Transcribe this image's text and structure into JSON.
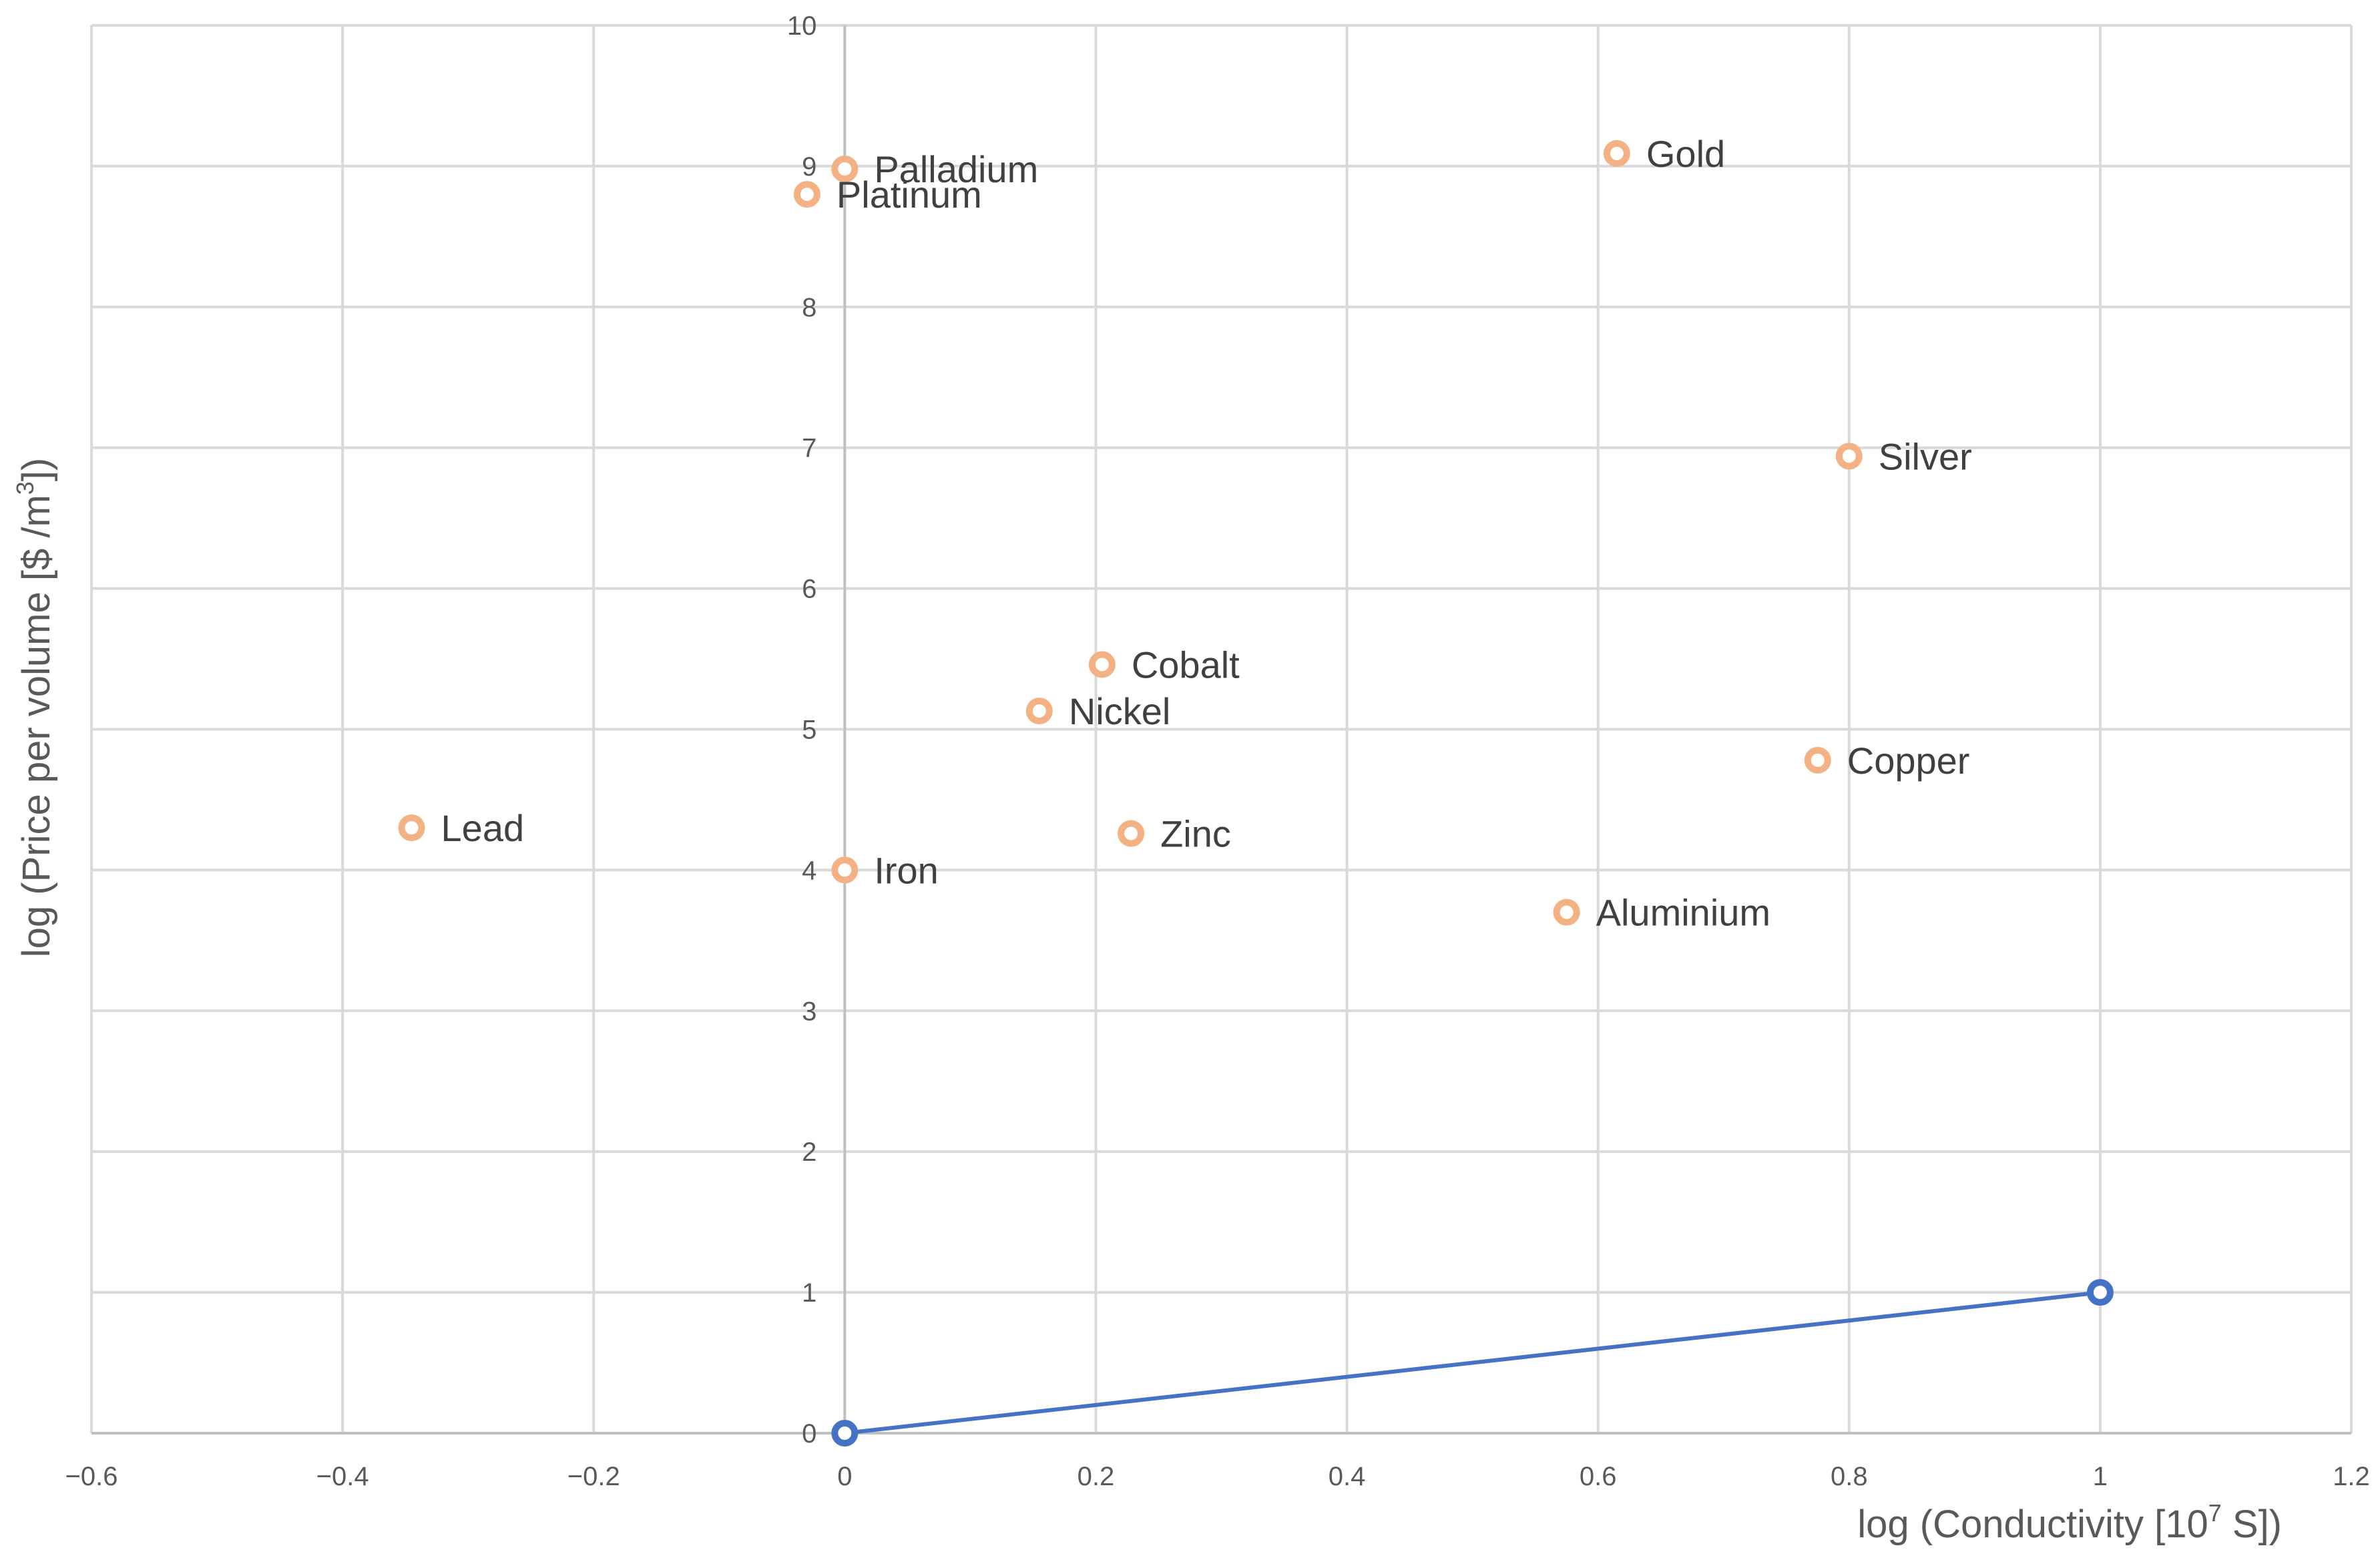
{
  "chart_data": {
    "type": "scatter",
    "title": "",
    "xlabel_main": "log (Conductivity [10",
    "xlabel_sup": "7",
    "xlabel_end": " S])",
    "ylabel_main": "log (Price per volume  [$ /m",
    "ylabel_sup": "3",
    "ylabel_end": "])",
    "xlim": [
      -0.6,
      1.2
    ],
    "ylim": [
      0,
      10
    ],
    "xticks": [
      -0.6,
      -0.4,
      -0.2,
      0,
      0.2,
      0.4,
      0.6,
      0.8,
      1,
      1.2
    ],
    "xtick_labels": [
      "−0.6",
      "−0.4",
      "−0.2",
      "0",
      "0.2",
      "0.4",
      "0.6",
      "0.8",
      "1",
      "1.2"
    ],
    "yticks": [
      0,
      1,
      2,
      3,
      4,
      5,
      6,
      7,
      8,
      9,
      10
    ],
    "ytick_labels": [
      "0",
      "1",
      "2",
      "3",
      "4",
      "5",
      "6",
      "7",
      "8",
      "9",
      "10"
    ],
    "grid": true,
    "legend": "none",
    "series": [
      {
        "color": "#f4b183",
        "marker": "ring",
        "points": [
          {
            "label": "Palladium",
            "x": 0.0,
            "y": 8.98
          },
          {
            "label": "Platinum",
            "x": -0.03,
            "y": 8.8
          },
          {
            "label": "Gold",
            "x": 0.615,
            "y": 9.09
          },
          {
            "label": "Silver",
            "x": 0.8,
            "y": 6.94
          },
          {
            "label": "Cobalt",
            "x": 0.205,
            "y": 5.46
          },
          {
            "label": "Nickel",
            "x": 0.155,
            "y": 5.13
          },
          {
            "label": "Copper",
            "x": 0.775,
            "y": 4.78
          },
          {
            "label": "Lead",
            "x": -0.345,
            "y": 4.3
          },
          {
            "label": "Zinc",
            "x": 0.228,
            "y": 4.26
          },
          {
            "label": "Iron",
            "x": 0.0,
            "y": 4.0
          },
          {
            "label": "Aluminium",
            "x": 0.575,
            "y": 3.7
          }
        ]
      },
      {
        "color": "#4472c4",
        "marker": "ring-line",
        "points": [
          {
            "x": 0,
            "y": 0
          },
          {
            "x": 1,
            "y": 1
          }
        ]
      }
    ]
  }
}
